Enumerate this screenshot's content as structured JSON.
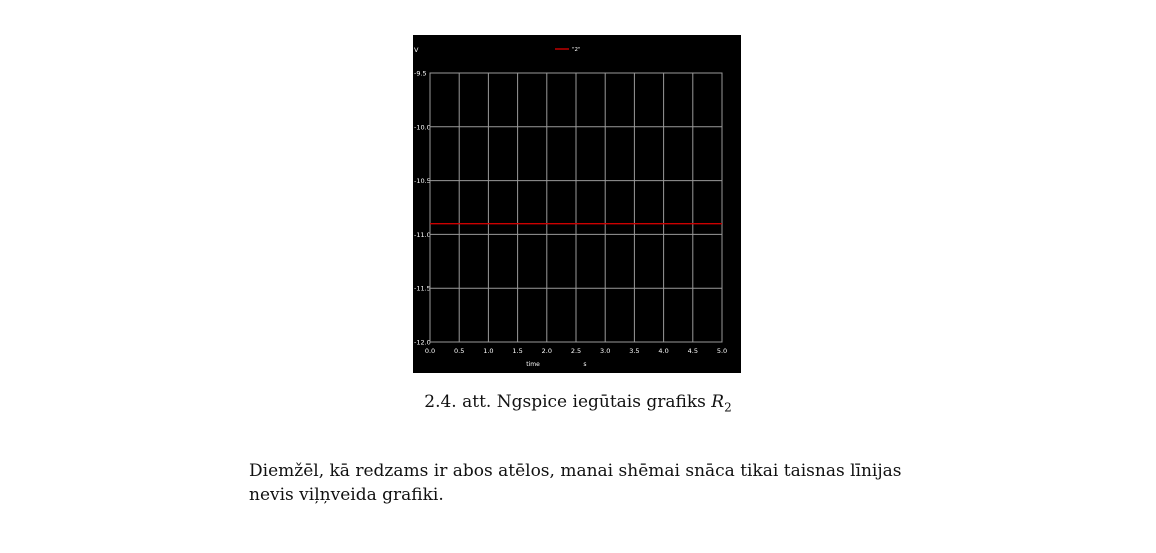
{
  "figure": {
    "chart_data": {
      "type": "line",
      "ylabel": "V",
      "xlabel": "time",
      "xunit": "s",
      "xlim": [
        0.0,
        5.0
      ],
      "ylim": [
        -12.0,
        -9.5
      ],
      "x_ticks": [
        "0.0",
        "0.5",
        "1.0",
        "1.5",
        "2.0",
        "2.5",
        "3.0",
        "3.5",
        "4.0",
        "4.5",
        "5.0"
      ],
      "y_ticks": [
        "-9.5",
        "-10.0",
        "-10.5",
        "-11.0",
        "-11.5",
        "-12.0"
      ],
      "grid": true,
      "legend_position": "top-center",
      "series": [
        {
          "name": "\"2\"",
          "color": "#cc0000",
          "x": [
            0.0,
            5.0
          ],
          "y": [
            -10.9,
            -10.9
          ]
        }
      ]
    },
    "colors": {
      "background": "#000000",
      "grid": "#9a9a9a",
      "text": "#ffffff"
    }
  },
  "caption": {
    "prefix": "2.4. att. Ngspice iegūtais grafiks ",
    "symbol": "R",
    "subscript": "2"
  },
  "paragraph": {
    "line1": "Diemžēl, kā redzams ir abos atēlos, manai shēmai snāca tikai taisnas līnijas",
    "line2": "nevis viļņveida grafiki."
  }
}
